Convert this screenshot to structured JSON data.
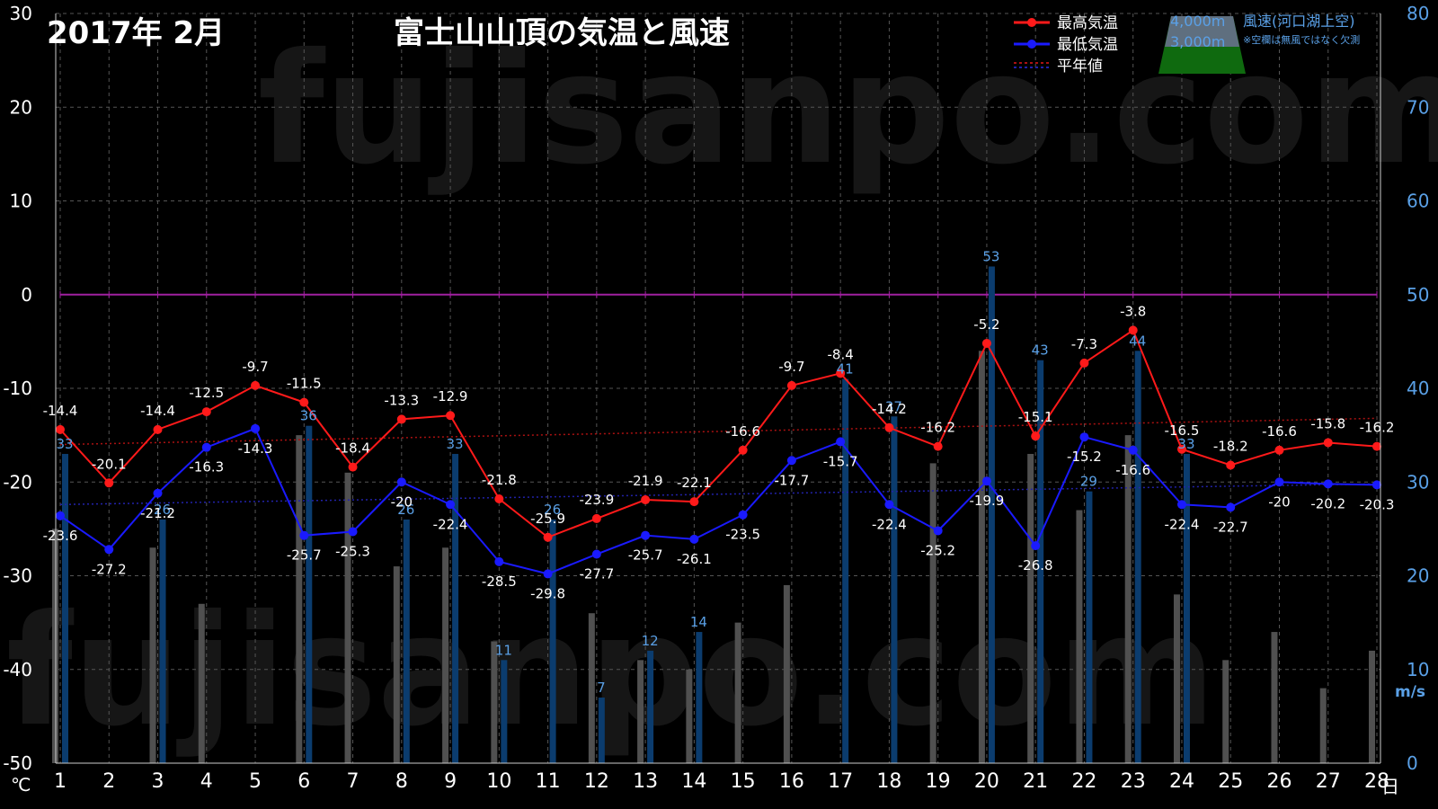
{
  "chart_data": {
    "type": "line",
    "title": "富士山山頂の気温と風速",
    "period": "2017年 2月",
    "watermark": "fujisanpo.com",
    "x_unit": "日",
    "y_left_unit": "℃",
    "y_right_unit": "m/s",
    "y_left_range": [
      -50,
      30
    ],
    "y_right_range": [
      0,
      80
    ],
    "y_left_ticks": [
      "30",
      "20",
      "10",
      "0",
      "-10",
      "-20",
      "-30",
      "-40",
      "-50"
    ],
    "y_right_ticks": [
      "80",
      "70",
      "60",
      "50",
      "40",
      "30",
      "20",
      "10",
      "0"
    ],
    "grid": true,
    "legend_position": "top-right",
    "x": [
      "1",
      "2",
      "3",
      "4",
      "5",
      "6",
      "7",
      "8",
      "9",
      "10",
      "11",
      "12",
      "13",
      "14",
      "15",
      "16",
      "17",
      "18",
      "19",
      "20",
      "21",
      "22",
      "23",
      "24",
      "25",
      "26",
      "27",
      "28"
    ],
    "series": [
      {
        "name": "最高気温",
        "axis": "left",
        "color": "#ff1a1a",
        "values": [
          -14.4,
          -20.1,
          -14.4,
          -12.5,
          -9.7,
          -11.5,
          -18.4,
          -13.3,
          -12.9,
          -21.8,
          -25.9,
          -23.9,
          -21.9,
          -22.1,
          -16.6,
          -9.7,
          -8.4,
          -14.2,
          -16.2,
          -5.2,
          -15.1,
          -7.3,
          -3.8,
          -16.5,
          -18.2,
          -16.6,
          -15.8,
          -16.2
        ]
      },
      {
        "name": "最低気温",
        "axis": "left",
        "color": "#1a1aff",
        "values": [
          -23.6,
          -27.2,
          -21.2,
          -16.3,
          -14.3,
          -25.7,
          -25.3,
          -20,
          -22.4,
          -28.5,
          -29.8,
          -27.7,
          -25.7,
          -26.1,
          -23.5,
          -17.7,
          -15.7,
          -22.4,
          -25.2,
          -19.9,
          -26.8,
          -15.2,
          -16.6,
          -22.4,
          -22.7,
          -20,
          -20.2,
          -20.3
        ]
      },
      {
        "name": "平年値",
        "axis": "left",
        "style": "dotted",
        "normal_max": [
          -16.0,
          -13.2
        ],
        "normal_min": [
          -22.4,
          -20.2
        ]
      },
      {
        "name": "風速(河口湖上空)",
        "axis": "right",
        "type": "bar",
        "altitude_labels": [
          "4,000m",
          "3,000m"
        ],
        "note": "※空欄は無風ではなく欠測",
        "wind_4000m": [
          33,
          null,
          26,
          null,
          null,
          36,
          null,
          26,
          33,
          11,
          26,
          7,
          12,
          14,
          null,
          null,
          41,
          37,
          null,
          53,
          43,
          29,
          44,
          33,
          null,
          null,
          null,
          null
        ],
        "wind_3000m": [
          25,
          null,
          23,
          17,
          null,
          35,
          31,
          21,
          23,
          13,
          null,
          16,
          11,
          10,
          15,
          19,
          null,
          null,
          32,
          44,
          33,
          27,
          35,
          18,
          11,
          14,
          8,
          12
        ]
      }
    ]
  },
  "colors": {
    "max_line": "#ff1a1a",
    "min_line": "#1a1aff",
    "normal_max": "#aa1111",
    "normal_min": "#2222aa",
    "zero_line": "#a020a0",
    "wind_4000": "#0b3c6e",
    "wind_3000": "#505050",
    "grid": "#555555",
    "right_axis_text": "#5aa0e6",
    "mountain_green": "#0f6a0f"
  }
}
